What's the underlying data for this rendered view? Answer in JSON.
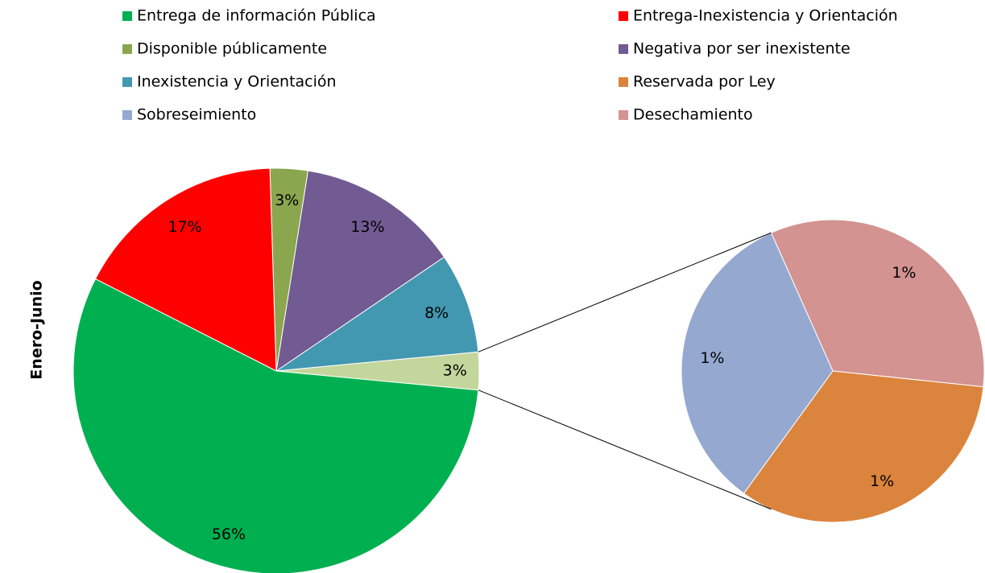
{
  "chart_data": {
    "type": "pie",
    "ylabel": "Enero-Junio",
    "categories": [
      "Entrega de información Pública",
      "Entrega-Inexistencia y Orientación",
      "Disponible públicamente",
      "Negativa por ser inexistente",
      "Inexistencia y Orientación",
      "Reservada por Ley",
      "Sobreseimiento",
      "Desechamiento"
    ],
    "values": [
      56,
      17,
      3,
      13,
      8,
      1,
      1,
      1
    ],
    "value_labels": [
      "56%",
      "17%",
      "3%",
      "13%",
      "8%",
      "1%",
      "1%",
      "1%"
    ],
    "colors": [
      "#00b050",
      "#ff0000",
      "#8aa64f",
      "#725a92",
      "#4298b0",
      "#db843d",
      "#95a9d0",
      "#d39391"
    ],
    "other": {
      "value": 3,
      "label": "3%",
      "color": "#c3d69b"
    }
  }
}
